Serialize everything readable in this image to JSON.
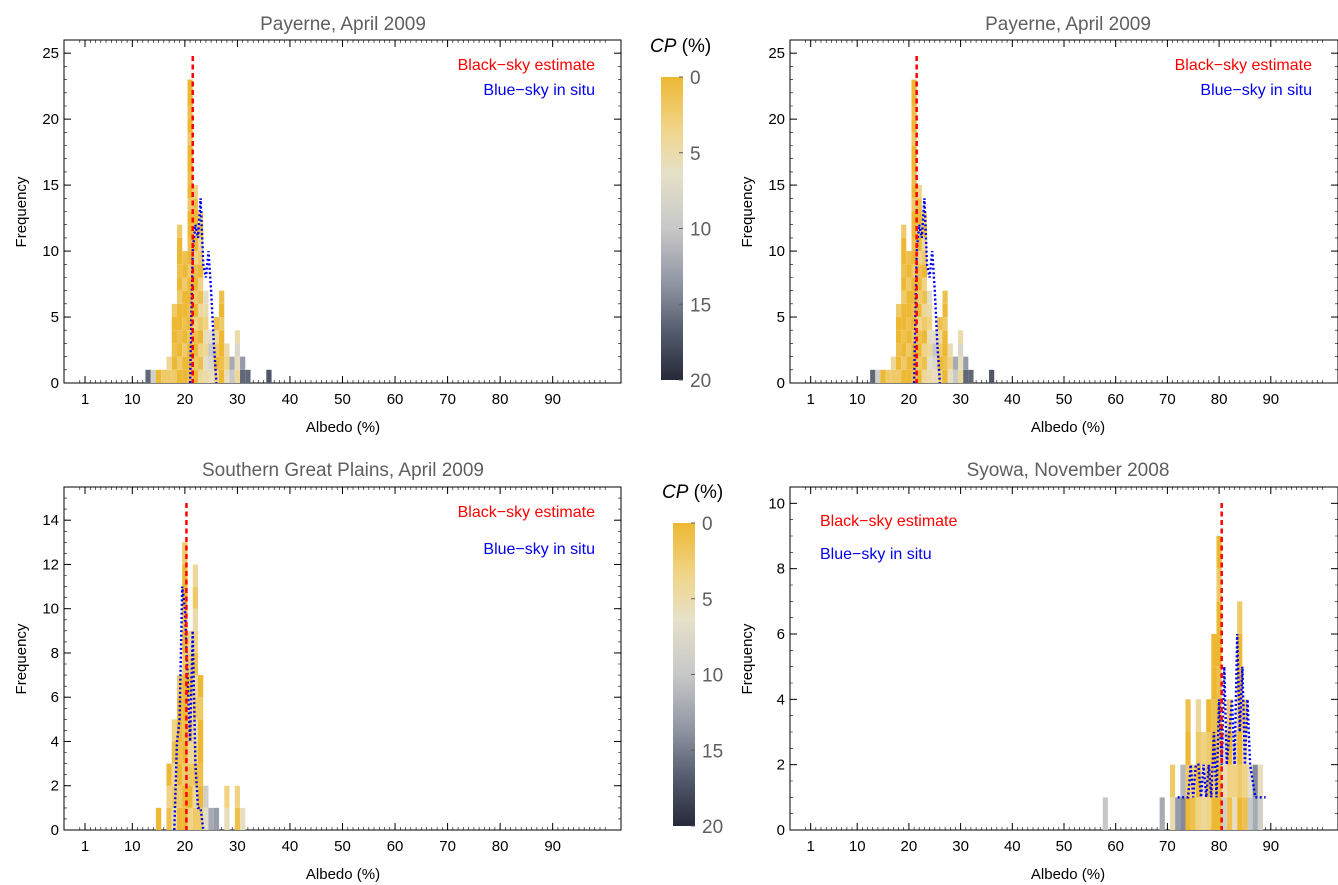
{
  "legend_labels": {
    "black_sky": "Black−sky estimate",
    "blue_sky": "Blue−sky in situ"
  },
  "colors": {
    "black_sky_line": "#ff0000",
    "blue_sky_line": "#0000ee",
    "cp_scale": [
      "#edb833",
      "#f0d68d",
      "#e6e0c9",
      "#c7c8c8",
      "#9096a4",
      "#545b6c",
      "#262a3a"
    ]
  },
  "colorbars": [
    {
      "title": "CP (%)",
      "title_italic": "CP",
      "title_unit": " (%)",
      "ticks": [
        "0",
        "5",
        "10",
        "15",
        "20"
      ],
      "range": [
        0,
        20
      ]
    },
    {
      "title": "CP (%)",
      "title_italic": "CP",
      "title_unit": " (%)",
      "ticks": [
        "0",
        "5",
        "10",
        "15",
        "20"
      ],
      "range": [
        0,
        20
      ]
    }
  ],
  "chart_data": [
    {
      "type": "bar",
      "title": "Payerne, April 2009",
      "xlabel": "Albedo (%)",
      "ylabel": "Frequency",
      "xlim": [
        -3,
        103
      ],
      "ylim": [
        0,
        26
      ],
      "xticks": [
        1,
        10,
        20,
        30,
        40,
        50,
        60,
        70,
        80,
        90
      ],
      "yticks": [
        0,
        5,
        10,
        15,
        20,
        25
      ],
      "black_sky_estimate": 21.5,
      "legend_position": "top-right",
      "bins": [
        {
          "x": 13,
          "count": 1,
          "cp": 14
        },
        {
          "x": 14,
          "count": 1,
          "cp": 9
        },
        {
          "x": 15,
          "count": 1,
          "cp": 2
        },
        {
          "x": 16,
          "count": 1,
          "cp": 1
        },
        {
          "x": 17,
          "count": 2,
          "cp": 3
        },
        {
          "x": 18,
          "count": 6,
          "cp": 0
        },
        {
          "x": 19,
          "count": 12,
          "cp": 0
        },
        {
          "x": 20,
          "count": 10,
          "cp": 0
        },
        {
          "x": 21,
          "count": 23,
          "cp": 0
        },
        {
          "x": 22,
          "count": 15,
          "cp": 1
        },
        {
          "x": 23,
          "count": 13,
          "cp": 2
        },
        {
          "x": 24,
          "count": 7,
          "cp": 5
        },
        {
          "x": 25,
          "count": 4,
          "cp": 8
        },
        {
          "x": 26,
          "count": 5,
          "cp": 2
        },
        {
          "x": 27,
          "count": 7,
          "cp": 0
        },
        {
          "x": 28,
          "count": 3,
          "cp": 4
        },
        {
          "x": 29,
          "count": 2,
          "cp": 10
        },
        {
          "x": 30,
          "count": 4,
          "cp": 6
        },
        {
          "x": 31,
          "count": 2,
          "cp": 15
        },
        {
          "x": 32,
          "count": 1,
          "cp": 17
        },
        {
          "x": 36,
          "count": 1,
          "cp": 16
        }
      ],
      "blue_sky": {
        "x": [
          21,
          21.5,
          22,
          22.5,
          23,
          23.5,
          24,
          24.5,
          25,
          25.5,
          26
        ],
        "y": [
          0,
          10,
          12,
          11,
          14,
          9,
          8,
          10,
          7,
          3,
          0
        ]
      }
    },
    {
      "type": "bar",
      "title": "Payerne, April 2009",
      "xlabel": "Albedo (%)",
      "ylabel": "Frequency",
      "xlim": [
        -3,
        103
      ],
      "ylim": [
        0,
        26
      ],
      "xticks": [
        1,
        10,
        20,
        30,
        40,
        50,
        60,
        70,
        80,
        90
      ],
      "yticks": [
        0,
        5,
        10,
        15,
        20,
        25
      ],
      "black_sky_estimate": 21.5,
      "legend_position": "top-right",
      "bins": [
        {
          "x": 13,
          "count": 1,
          "cp": 14
        },
        {
          "x": 14,
          "count": 1,
          "cp": 9
        },
        {
          "x": 15,
          "count": 1,
          "cp": 2
        },
        {
          "x": 16,
          "count": 1,
          "cp": 1
        },
        {
          "x": 17,
          "count": 2,
          "cp": 3
        },
        {
          "x": 18,
          "count": 6,
          "cp": 0
        },
        {
          "x": 19,
          "count": 12,
          "cp": 0
        },
        {
          "x": 20,
          "count": 10,
          "cp": 0
        },
        {
          "x": 21,
          "count": 23,
          "cp": 0
        },
        {
          "x": 22,
          "count": 15,
          "cp": 1
        },
        {
          "x": 23,
          "count": 13,
          "cp": 2
        },
        {
          "x": 24,
          "count": 7,
          "cp": 5
        },
        {
          "x": 25,
          "count": 4,
          "cp": 8
        },
        {
          "x": 26,
          "count": 5,
          "cp": 2
        },
        {
          "x": 27,
          "count": 7,
          "cp": 0
        },
        {
          "x": 28,
          "count": 3,
          "cp": 4
        },
        {
          "x": 29,
          "count": 2,
          "cp": 10
        },
        {
          "x": 30,
          "count": 4,
          "cp": 6
        },
        {
          "x": 31,
          "count": 2,
          "cp": 15
        },
        {
          "x": 32,
          "count": 1,
          "cp": 17
        },
        {
          "x": 36,
          "count": 1,
          "cp": 16
        }
      ],
      "blue_sky": {
        "x": [
          21,
          21.5,
          22,
          22.5,
          23,
          23.5,
          24,
          24.5,
          25,
          25.5,
          26
        ],
        "y": [
          0,
          10,
          12,
          11,
          14,
          9,
          8,
          10,
          7,
          3,
          0
        ]
      }
    },
    {
      "type": "bar",
      "title": "Southern Great Plains, April 2009",
      "xlabel": "Albedo (%)",
      "ylabel": "Frequency",
      "xlim": [
        -3,
        103
      ],
      "ylim": [
        0,
        15.5
      ],
      "xticks": [
        1,
        10,
        20,
        30,
        40,
        50,
        60,
        70,
        80,
        90
      ],
      "yticks": [
        0,
        2,
        4,
        6,
        8,
        10,
        12,
        14
      ],
      "black_sky_estimate": 20.3,
      "legend_position": "top-right",
      "bins": [
        {
          "x": 15,
          "count": 1,
          "cp": 0
        },
        {
          "x": 17,
          "count": 3,
          "cp": 2
        },
        {
          "x": 18,
          "count": 5,
          "cp": 3
        },
        {
          "x": 19,
          "count": 7,
          "cp": 0
        },
        {
          "x": 20,
          "count": 13,
          "cp": 0
        },
        {
          "x": 21,
          "count": 9,
          "cp": 2
        },
        {
          "x": 22,
          "count": 12,
          "cp": 3
        },
        {
          "x": 23,
          "count": 7,
          "cp": 0
        },
        {
          "x": 24,
          "count": 2,
          "cp": 7
        },
        {
          "x": 25,
          "count": 1,
          "cp": 14
        },
        {
          "x": 26,
          "count": 1,
          "cp": 12
        },
        {
          "x": 28,
          "count": 2,
          "cp": 4
        },
        {
          "x": 30,
          "count": 2,
          "cp": 3
        },
        {
          "x": 31,
          "count": 1,
          "cp": 5
        }
      ],
      "blue_sky": {
        "x": [
          18,
          18.5,
          19,
          19.5,
          20,
          20.5,
          21,
          21.5,
          22,
          22.5,
          23,
          23.5
        ],
        "y": [
          0,
          4,
          5,
          11,
          10,
          7,
          4,
          9,
          3,
          1,
          1,
          0
        ]
      }
    },
    {
      "type": "bar",
      "title": "Syowa, November 2008",
      "xlabel": "Albedo (%)",
      "ylabel": "Frequency",
      "xlim": [
        -3,
        103
      ],
      "ylim": [
        0,
        10.5
      ],
      "xticks": [
        1,
        10,
        20,
        30,
        40,
        50,
        60,
        70,
        80,
        90
      ],
      "yticks": [
        0,
        2,
        4,
        6,
        8,
        10
      ],
      "black_sky_estimate": 80.5,
      "legend_position": "top-left",
      "bins": [
        {
          "x": 58,
          "count": 1,
          "cp": 8
        },
        {
          "x": 69,
          "count": 1,
          "cp": 12
        },
        {
          "x": 71,
          "count": 2,
          "cp": 4
        },
        {
          "x": 72,
          "count": 1,
          "cp": 14
        },
        {
          "x": 73,
          "count": 2,
          "cp": 12
        },
        {
          "x": 74,
          "count": 4,
          "cp": 0
        },
        {
          "x": 75,
          "count": 2,
          "cp": 3
        },
        {
          "x": 76,
          "count": 4,
          "cp": 2
        },
        {
          "x": 77,
          "count": 3,
          "cp": 5
        },
        {
          "x": 78,
          "count": 4,
          "cp": 1
        },
        {
          "x": 79,
          "count": 6,
          "cp": 0
        },
        {
          "x": 80,
          "count": 9,
          "cp": 0
        },
        {
          "x": 81,
          "count": 3,
          "cp": 8
        },
        {
          "x": 82,
          "count": 4,
          "cp": 2
        },
        {
          "x": 83,
          "count": 3,
          "cp": 4
        },
        {
          "x": 84,
          "count": 7,
          "cp": 0
        },
        {
          "x": 85,
          "count": 4,
          "cp": 3
        },
        {
          "x": 86,
          "count": 2,
          "cp": 9
        },
        {
          "x": 87,
          "count": 2,
          "cp": 13
        },
        {
          "x": 88,
          "count": 2,
          "cp": 7
        }
      ],
      "blue_sky": {
        "x": [
          72,
          73,
          74,
          74.5,
          75,
          75.5,
          76,
          76.5,
          77,
          77.5,
          78,
          78.5,
          79,
          79.5,
          80,
          80.5,
          81,
          81.5,
          82,
          82.5,
          83,
          83.5,
          84,
          84.5,
          85,
          85.5,
          86,
          87,
          88,
          89
        ],
        "y": [
          1,
          1,
          1,
          2,
          1,
          2,
          2,
          1,
          2,
          1,
          2,
          1,
          3,
          1,
          4,
          2,
          5,
          2,
          3,
          4,
          2,
          6,
          3,
          5,
          2,
          4,
          2,
          1,
          1,
          1
        ]
      }
    }
  ]
}
